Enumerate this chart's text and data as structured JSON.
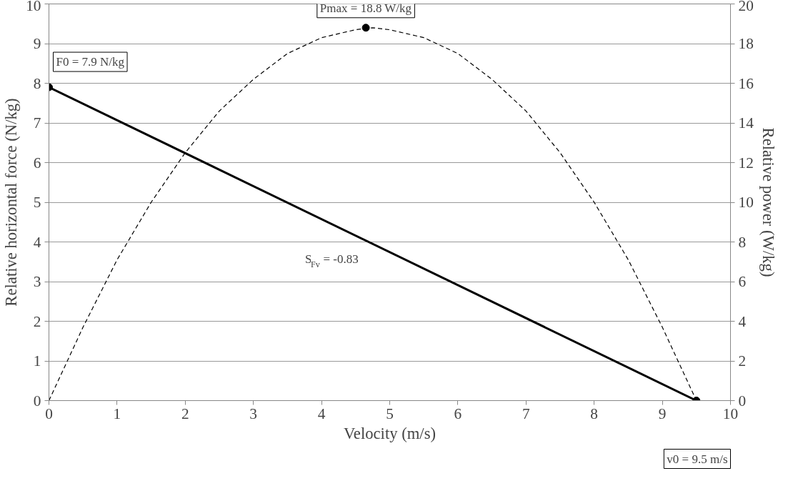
{
  "chart_data": {
    "type": "line",
    "xlabel": "Velocity (m/s)",
    "ylabel": "Relative horizontal force (N/kg)",
    "y2label": "Relative power (W/kg)",
    "series": [
      {
        "color": "#000000",
        "line_style": "solid",
        "marker": "none",
        "x": [
          0,
          9.5
        ],
        "values": [
          7.9,
          0
        ]
      },
      {
        "axis": "y2",
        "color": "#000000",
        "line_style": "dashed",
        "marker": "none",
        "x": [
          0,
          0.5,
          1,
          1.5,
          2,
          2.5,
          3,
          3.5,
          4,
          4.5,
          4.75,
          5,
          5.5,
          6,
          6.5,
          7,
          7.5,
          8,
          8.5,
          9,
          9.5
        ],
        "values": [
          0,
          3.7,
          7.1,
          10.0,
          12.5,
          14.6,
          16.2,
          17.5,
          18.3,
          18.7,
          18.8,
          18.7,
          18.3,
          17.5,
          16.2,
          14.6,
          12.5,
          10.0,
          7.1,
          3.7,
          0
        ]
      },
      {
        "type": "scatter",
        "color": "#000000",
        "marker": "circle",
        "x": [
          0,
          9.5
        ],
        "values": [
          7.9,
          0
        ]
      },
      {
        "type": "scatter",
        "axis": "y2",
        "color": "#000000",
        "marker": "circle",
        "x": [
          4.65
        ],
        "values": [
          18.8
        ]
      }
    ],
    "annotations": [
      {
        "text": "F0 = 7.9 N/kg",
        "x": 0,
        "y": 7.9
      },
      {
        "text": "Pmax = 18.8 W/kg",
        "x": 4.65,
        "y": 9.4
      },
      "S$_{Fv}$ = -0.83",
      "v0 = 9.5 m/s"
    ],
    "xlim": [
      0,
      10
    ],
    "xticks": [
      0,
      1,
      2,
      3,
      4,
      5,
      6,
      7,
      8,
      9,
      10
    ],
    "ylim": [
      0,
      10
    ],
    "yticks": [
      0,
      1,
      2,
      3,
      4,
      5,
      6,
      7,
      8,
      9,
      10
    ],
    "y2lim": [
      0,
      20
    ],
    "y2ticks": [
      0,
      2,
      4,
      6,
      8,
      10,
      12,
      14,
      16,
      18,
      20
    ],
    "grid": "y"
  }
}
